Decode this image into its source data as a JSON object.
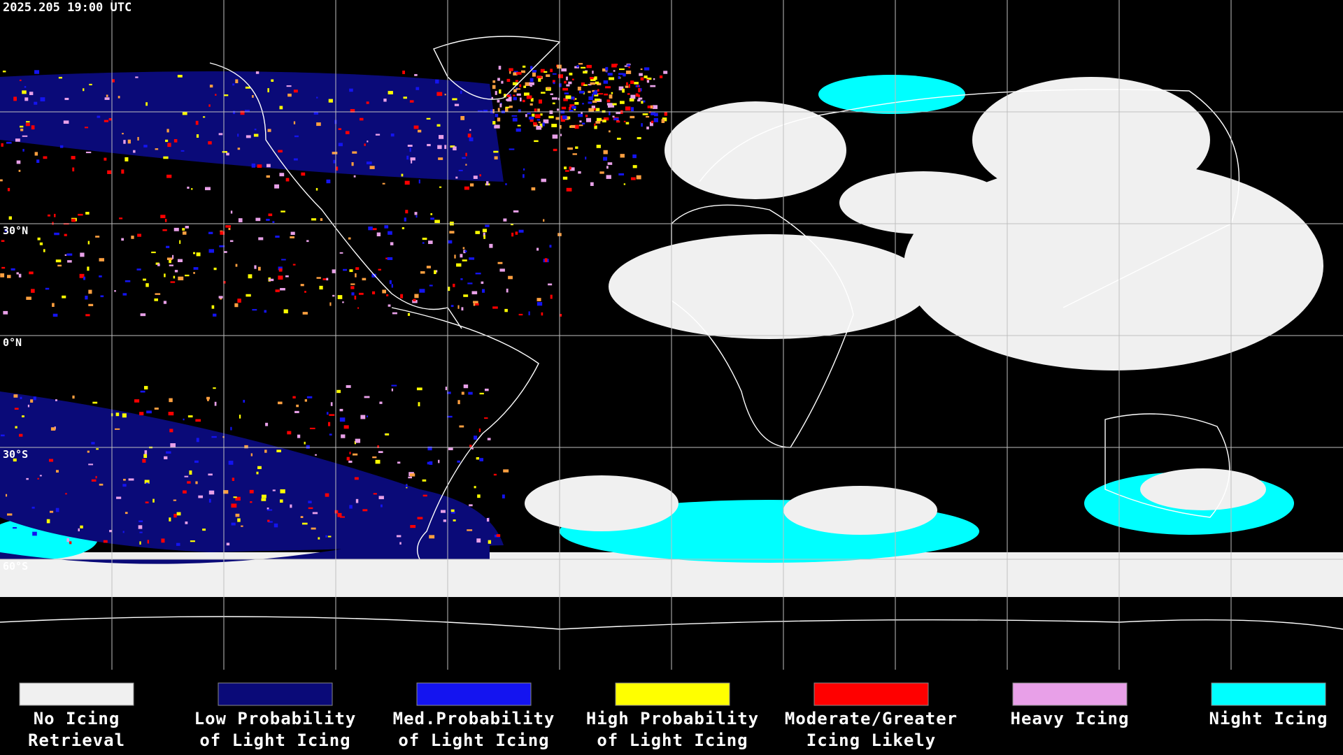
{
  "header": {
    "timestamp": "2025.205 19:00 UTC"
  },
  "map": {
    "lat_labels": [
      "30°N",
      "0°N",
      "30°S",
      "60°S"
    ]
  },
  "legend": {
    "items": [
      {
        "lines": [
          "No Icing",
          "Retrieval"
        ],
        "color": "#f0f0f0"
      },
      {
        "lines": [
          "Low Probability",
          "of Light Icing"
        ],
        "color": "#0a0a78"
      },
      {
        "lines": [
          "Med.Probability",
          "of Light Icing"
        ],
        "color": "#1414f0"
      },
      {
        "lines": [
          "High Probability",
          "of Light Icing"
        ],
        "color": "#ffff00"
      },
      {
        "lines": [
          "Moderate/Greater",
          "Icing Likely"
        ],
        "color": "#ff0000"
      },
      {
        "lines": [
          "Heavy Icing"
        ],
        "color": "#e8a0e8"
      },
      {
        "lines": [
          "Night Icing"
        ],
        "color": "#00ffff"
      }
    ]
  }
}
